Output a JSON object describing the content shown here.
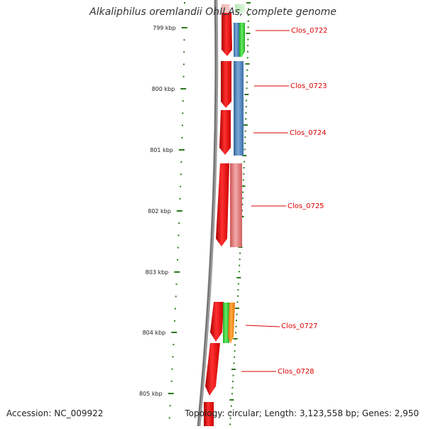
{
  "title": "Alkaliphilus oremlandii OhILAs, complete genome",
  "footer": {
    "accession": "Accession: NC_009922",
    "topology": "Topology: circular; Length: 3,123,558 bp; Genes: 2,950"
  },
  "colors": {
    "backbone": "#888888",
    "ticks": "#2a7a1a",
    "label": "#dd0000",
    "red": "#ee1111",
    "green": "#33cc33",
    "blue": "#4a7fb8",
    "pink": "#e88080",
    "orange": "#ff8800"
  },
  "ruler": {
    "major_ticks": [
      "799 kbp",
      "800 kbp",
      "801 kbp",
      "802 kbp",
      "803 kbp",
      "804 kbp",
      "805 kbp"
    ]
  },
  "genes": [
    {
      "label": "Clos_0722"
    },
    {
      "label": "Clos_0723"
    },
    {
      "label": "Clos_0724"
    },
    {
      "label": "Clos_0725"
    },
    {
      "label": "Clos_0727"
    },
    {
      "label": "Clos_0728"
    }
  ]
}
